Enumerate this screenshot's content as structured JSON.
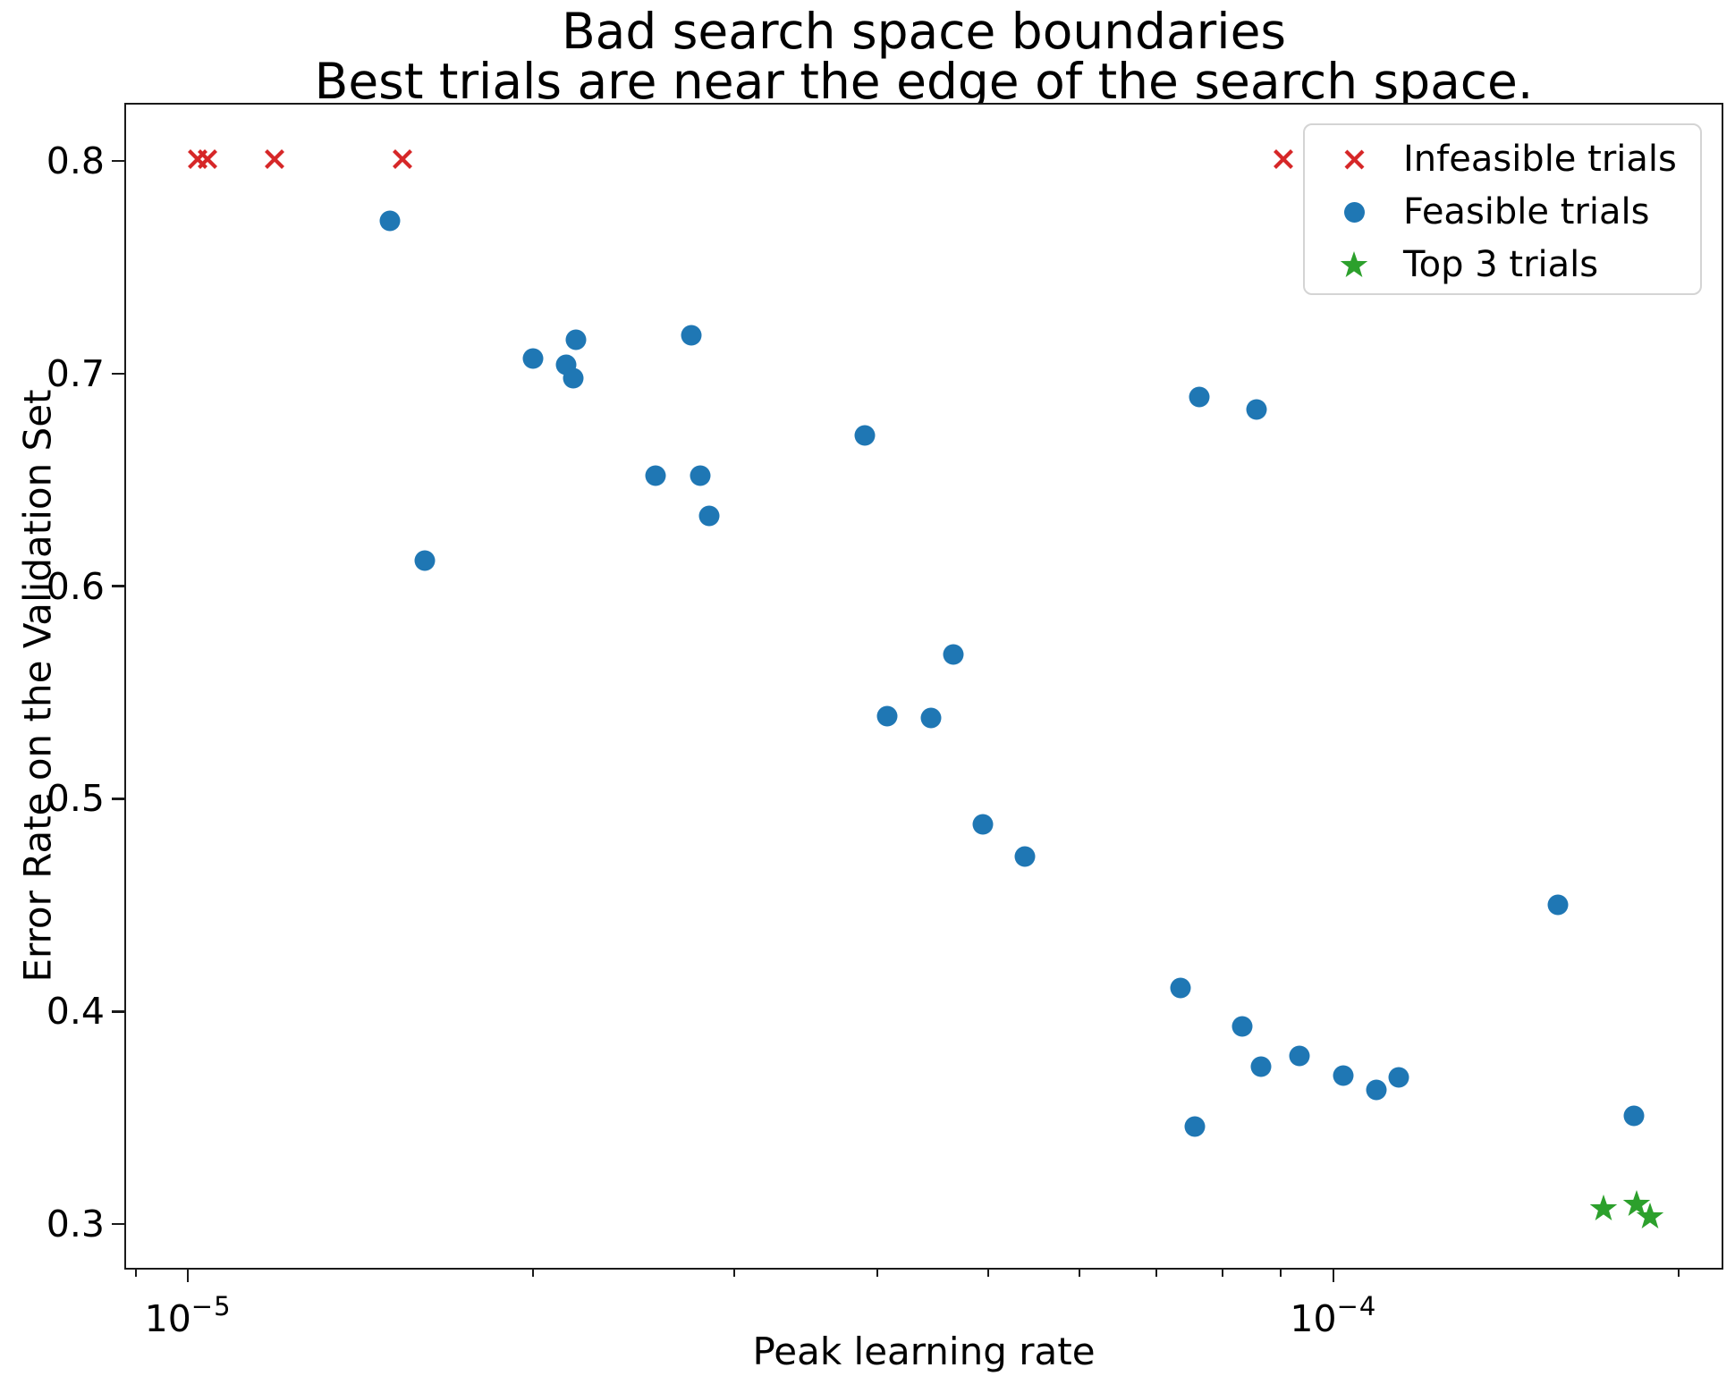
{
  "title": {
    "line1": "Bad search space boundaries",
    "line2": "Best trials are near the edge of the search space."
  },
  "chart_data": {
    "type": "scatter",
    "title": "Bad search space boundaries\nBest trials are near the edge of the search space.",
    "xlabel": "Peak learning rate",
    "ylabel": "Error Rate on the Validation Set",
    "x_scale": "log",
    "grid": false,
    "xlim": [
      8.8e-06,
      0.000219
    ],
    "ylim": [
      0.2786,
      0.8273
    ],
    "x_major_ticks": [
      {
        "value": 1e-05,
        "base": "10",
        "exp": "−5"
      },
      {
        "value": 0.0001,
        "base": "10",
        "exp": "−4"
      }
    ],
    "x_minor_ticks": [
      9e-06,
      2e-05,
      3e-05,
      4e-05,
      5e-05,
      6e-05,
      7e-05,
      8e-05,
      9e-05,
      0.0002
    ],
    "y_ticks": [
      {
        "value": 0.3,
        "label": "0.3"
      },
      {
        "value": 0.4,
        "label": "0.4"
      },
      {
        "value": 0.5,
        "label": "0.5"
      },
      {
        "value": 0.6,
        "label": "0.6"
      },
      {
        "value": 0.7,
        "label": "0.7"
      },
      {
        "value": 0.8,
        "label": "0.8"
      }
    ],
    "legend": {
      "position": "upper right",
      "entries": [
        {
          "label": "Infeasible trials",
          "marker": "x",
          "color": "#d62728"
        },
        {
          "label": "Feasible trials",
          "marker": "circle",
          "color": "#1f77b4"
        },
        {
          "label": "Top 3 trials",
          "marker": "star",
          "color": "#2ca02c"
        }
      ]
    },
    "series": [
      {
        "name": "Infeasible trials",
        "marker": "x",
        "color": "#d62728",
        "points": [
          [
            1.02e-05,
            0.8
          ],
          [
            1.04e-05,
            0.8
          ],
          [
            1.19e-05,
            0.8
          ],
          [
            1.54e-05,
            0.8
          ],
          [
            9.05e-05,
            0.8
          ]
        ]
      },
      {
        "name": "Feasible trials",
        "marker": "circle",
        "color": "#1f77b4",
        "points": [
          [
            1.5e-05,
            0.772
          ],
          [
            1.61e-05,
            0.612
          ],
          [
            2e-05,
            0.707
          ],
          [
            2.14e-05,
            0.704
          ],
          [
            2.17e-05,
            0.698
          ],
          [
            2.18e-05,
            0.716
          ],
          [
            2.56e-05,
            0.652
          ],
          [
            2.75e-05,
            0.718
          ],
          [
            2.8e-05,
            0.652
          ],
          [
            2.85e-05,
            0.633
          ],
          [
            3.9e-05,
            0.671
          ],
          [
            4.08e-05,
            0.539
          ],
          [
            4.45e-05,
            0.538
          ],
          [
            4.66e-05,
            0.568
          ],
          [
            4.94e-05,
            0.488
          ],
          [
            5.38e-05,
            0.473
          ],
          [
            7.36e-05,
            0.411
          ],
          [
            7.57e-05,
            0.346
          ],
          [
            7.64e-05,
            0.689
          ],
          [
            8.33e-05,
            0.393
          ],
          [
            8.57e-05,
            0.683
          ],
          [
            8.65e-05,
            0.374
          ],
          [
            9.34e-05,
            0.379
          ],
          [
            0.000102,
            0.37
          ],
          [
            0.000109,
            0.363
          ],
          [
            0.000114,
            0.369
          ],
          [
            0.000157,
            0.45
          ],
          [
            0.000183,
            0.351
          ]
        ]
      },
      {
        "name": "Top 3 trials",
        "marker": "star",
        "color": "#2ca02c",
        "points": [
          [
            0.000172,
            0.307
          ],
          [
            0.000184,
            0.309
          ],
          [
            0.000189,
            0.303
          ]
        ]
      }
    ]
  }
}
